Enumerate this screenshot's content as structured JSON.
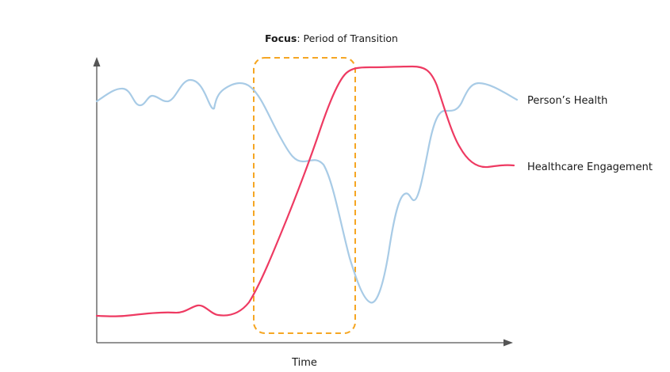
{
  "title": {
    "bold": "Focus",
    "rest": ": Period of Transition"
  },
  "xlabel": "Time",
  "focus_box": {
    "color": "#F5A623"
  },
  "axis_color": "#555555",
  "series": [
    {
      "name": "Person’s Health",
      "color": "#A8CBE6"
    },
    {
      "name": "Healthcare Engagement",
      "color": "#EE3A62"
    }
  ]
}
